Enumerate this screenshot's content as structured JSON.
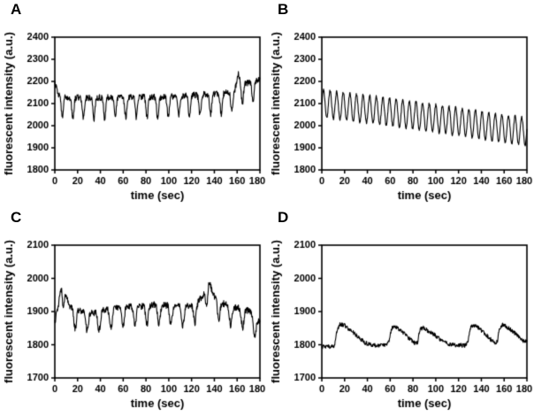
{
  "figure": {
    "background": "#ffffff",
    "line_color": "#000000"
  },
  "chart_data": [
    {
      "letter": "A",
      "type": "line",
      "title": "",
      "xlabel": "time (sec)",
      "ylabel": "fluorescent intensity (a.u.)",
      "xlim": [
        0,
        180
      ],
      "ylim": [
        1800,
        2400
      ],
      "xticks": [
        0,
        20,
        40,
        60,
        80,
        100,
        120,
        140,
        160,
        180
      ],
      "yticks": [
        1800,
        1900,
        2000,
        2100,
        2200,
        2300,
        2400
      ],
      "grid": false,
      "legend": false,
      "series": {
        "name": "fluorescent intensity",
        "color": "#000000",
        "linewidth": 1.1,
        "sample_step": 0.3,
        "noise": 14,
        "oscillation": {
          "type": "dips",
          "period": 9.3,
          "depth": 95,
          "width": 0.9
        },
        "baseline": [
          [
            0,
            2195
          ],
          [
            3,
            2140
          ],
          [
            10,
            2128
          ],
          [
            20,
            2126
          ],
          [
            30,
            2126
          ],
          [
            45,
            2128
          ],
          [
            60,
            2128
          ],
          [
            75,
            2132
          ],
          [
            90,
            2130
          ],
          [
            105,
            2133
          ],
          [
            120,
            2138
          ],
          [
            135,
            2142
          ],
          [
            150,
            2150
          ],
          [
            158,
            2162
          ],
          [
            161,
            2235
          ],
          [
            164,
            2195
          ],
          [
            170,
            2192
          ],
          [
            175,
            2198
          ],
          [
            180,
            2210
          ]
        ]
      }
    },
    {
      "letter": "B",
      "type": "line",
      "title": "",
      "xlabel": "time (sec)",
      "ylabel": "fluorescent intensity (a.u.)",
      "xlim": [
        0,
        180
      ],
      "ylim": [
        1800,
        2400
      ],
      "xticks": [
        0,
        20,
        40,
        60,
        80,
        100,
        120,
        140,
        160,
        180
      ],
      "yticks": [
        1800,
        1900,
        2000,
        2100,
        2200,
        2300,
        2400
      ],
      "grid": false,
      "legend": false,
      "series": {
        "name": "fluorescent intensity",
        "color": "#000000",
        "linewidth": 1.1,
        "sample_step": 0.25,
        "noise": 6,
        "oscillation": {
          "type": "sine",
          "period": 5.8,
          "amplitude": 62
        },
        "baseline": [
          [
            0,
            2100
          ],
          [
            60,
            2062
          ],
          [
            120,
            2018
          ],
          [
            180,
            1972
          ]
        ]
      }
    },
    {
      "letter": "C",
      "type": "line",
      "title": "",
      "xlabel": "time (sec)",
      "ylabel": "fluorescent intensity (a.u.)",
      "xlim": [
        0,
        180
      ],
      "ylim": [
        1700,
        2100
      ],
      "xticks": [
        0,
        20,
        40,
        60,
        80,
        100,
        120,
        140,
        160,
        180
      ],
      "yticks": [
        1700,
        1800,
        1900,
        2000,
        2100
      ],
      "grid": false,
      "legend": false,
      "series": {
        "name": "fluorescent intensity",
        "color": "#000000",
        "linewidth": 1.1,
        "sample_step": 0.3,
        "noise": 10,
        "oscillation": {
          "type": "dips",
          "period": 10.5,
          "depth": 58,
          "width": 1.1
        },
        "baseline": [
          [
            0,
            1868
          ],
          [
            3,
            1915
          ],
          [
            6,
            1988
          ],
          [
            9,
            1962
          ],
          [
            13,
            1918
          ],
          [
            18,
            1906
          ],
          [
            25,
            1900
          ],
          [
            35,
            1896
          ],
          [
            45,
            1906
          ],
          [
            55,
            1910
          ],
          [
            65,
            1916
          ],
          [
            75,
            1916
          ],
          [
            85,
            1921
          ],
          [
            95,
            1921
          ],
          [
            105,
            1916
          ],
          [
            115,
            1916
          ],
          [
            125,
            1926
          ],
          [
            131,
            1955
          ],
          [
            135,
            1998
          ],
          [
            139,
            1950
          ],
          [
            147,
            1926
          ],
          [
            155,
            1916
          ],
          [
            162,
            1911
          ],
          [
            168,
            1906
          ],
          [
            172,
            1896
          ],
          [
            176,
            1876
          ],
          [
            180,
            1868
          ]
        ]
      }
    },
    {
      "letter": "D",
      "type": "line",
      "title": "",
      "xlabel": "time (sec)",
      "ylabel": "fluorescent intensity (a.u.)",
      "xlim": [
        0,
        180
      ],
      "ylim": [
        1700,
        2100
      ],
      "xticks": [
        0,
        20,
        40,
        60,
        80,
        100,
        120,
        140,
        160,
        180
      ],
      "yticks": [
        1700,
        1800,
        1900,
        2000,
        2100
      ],
      "grid": false,
      "legend": false,
      "series": {
        "name": "fluorescent intensity",
        "color": "#000000",
        "linewidth": 1.1,
        "sample_step": 0.3,
        "noise": 6,
        "oscillation": {
          "type": "none"
        },
        "baseline": [
          [
            0,
            1794
          ],
          [
            8,
            1794
          ],
          [
            11,
            1796
          ],
          [
            13,
            1840
          ],
          [
            16,
            1862
          ],
          [
            20,
            1858
          ],
          [
            24,
            1846
          ],
          [
            28,
            1836
          ],
          [
            33,
            1820
          ],
          [
            38,
            1806
          ],
          [
            44,
            1799
          ],
          [
            52,
            1797
          ],
          [
            57,
            1799
          ],
          [
            59,
            1810
          ],
          [
            61,
            1848
          ],
          [
            64,
            1856
          ],
          [
            68,
            1846
          ],
          [
            73,
            1832
          ],
          [
            78,
            1815
          ],
          [
            82,
            1804
          ],
          [
            84,
            1808
          ],
          [
            86,
            1846
          ],
          [
            89,
            1852
          ],
          [
            93,
            1843
          ],
          [
            98,
            1832
          ],
          [
            104,
            1816
          ],
          [
            110,
            1803
          ],
          [
            118,
            1799
          ],
          [
            126,
            1798
          ],
          [
            128,
            1806
          ],
          [
            130,
            1848
          ],
          [
            133,
            1860
          ],
          [
            138,
            1850
          ],
          [
            143,
            1834
          ],
          [
            148,
            1817
          ],
          [
            152,
            1806
          ],
          [
            154,
            1810
          ],
          [
            156,
            1850
          ],
          [
            159,
            1862
          ],
          [
            164,
            1850
          ],
          [
            169,
            1836
          ],
          [
            173,
            1822
          ],
          [
            176,
            1812
          ],
          [
            180,
            1810
          ]
        ]
      }
    }
  ]
}
